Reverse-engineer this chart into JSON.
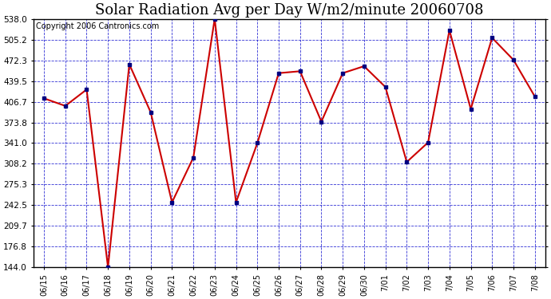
{
  "title": "Solar Radiation Avg per Day W/m2/minute 20060708",
  "copyright": "Copyright 2006 Cantronics.com",
  "dates": [
    "06/15",
    "06/16",
    "06/17",
    "06/18",
    "06/19",
    "06/20",
    "06/21",
    "06/22",
    "06/23",
    "06/24",
    "06/25",
    "06/26",
    "06/27",
    "06/28",
    "06/29",
    "06/30",
    "7/01",
    "7/02",
    "7/03",
    "7/04",
    "7/05",
    "7/06",
    "7/07",
    "7/08"
  ],
  "values": [
    412,
    400,
    426,
    144,
    466,
    390,
    247,
    318,
    538,
    247,
    341,
    452,
    455,
    375,
    452,
    463,
    430,
    311,
    342,
    520,
    395,
    508,
    473,
    415
  ],
  "line_color": "#cc0000",
  "dot_color": "#000080",
  "bg_color": "#ffffff",
  "grid_color": "#0000cc",
  "border_color": "#000000",
  "fig_bg_color": "#ffffff",
  "ymin": 144.0,
  "ymax": 538.0,
  "yticks": [
    144.0,
    176.8,
    209.7,
    242.5,
    275.3,
    308.2,
    341.0,
    373.8,
    406.7,
    439.5,
    472.3,
    505.2,
    538.0
  ],
  "title_fontsize": 13,
  "copyright_fontsize": 7,
  "tick_fontsize": 7.5,
  "xlabel_fontsize": 7
}
